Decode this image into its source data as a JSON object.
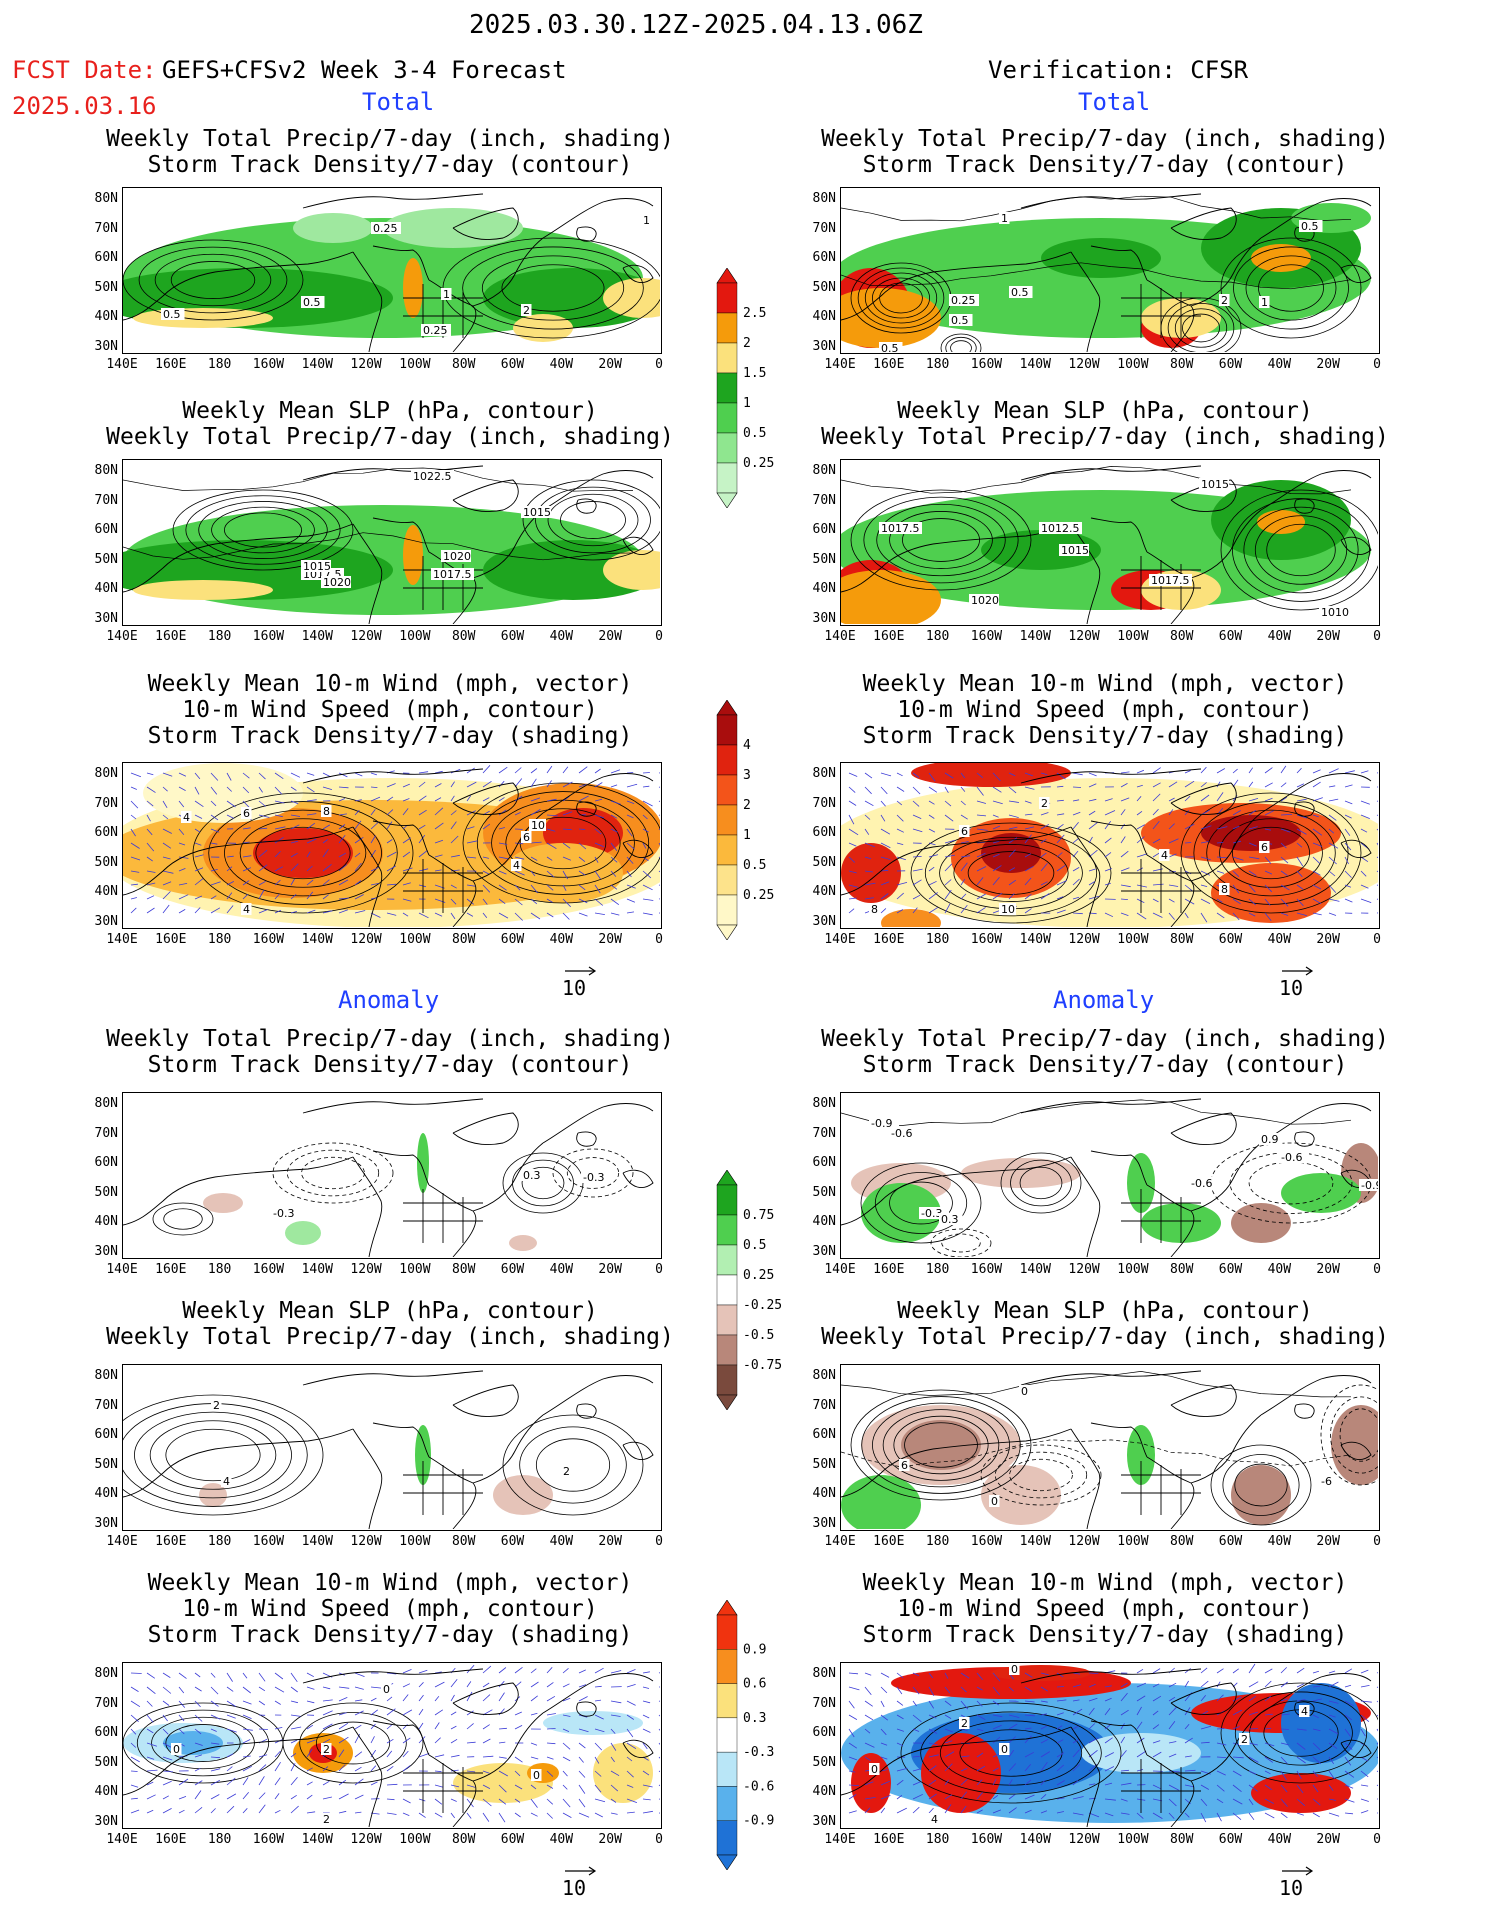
{
  "header": {
    "period": "2025.03.30.12Z-2025.04.13.06Z",
    "fcst_label": "FCST Date:",
    "model": "GEFS+CFSv2 Week 3-4 Forecast",
    "fcst_date": "2025.03.16",
    "verification": "Verification: CFSR",
    "left_total": "Total",
    "right_total": "Total",
    "left_anomaly": "Anomaly",
    "right_anomaly": "Anomaly"
  },
  "titles": {
    "precip_storm": [
      "Weekly Total Precip/7-day (inch, shading)",
      "Storm Track Density/7-day (contour)"
    ],
    "slp_precip": [
      "Weekly Mean SLP (hPa, contour)",
      "Weekly Total Precip/7-day (inch, shading)"
    ],
    "wind_storm": [
      "Weekly Mean 10-m Wind (mph, vector)",
      "10-m Wind Speed (mph, contour)",
      "Storm Track Density/7-day (shading)"
    ]
  },
  "axes": {
    "lat_labels": [
      "80N",
      "70N",
      "60N",
      "50N",
      "40N",
      "30N"
    ],
    "lon_labels": [
      "140E",
      "160E",
      "180",
      "160W",
      "140W",
      "120W",
      "100W",
      "80W",
      "60W",
      "40W",
      "20W",
      "0"
    ]
  },
  "vector_ref": "10",
  "colorbars": {
    "precip_total": {
      "labels": [
        "2.5",
        "2",
        "1.5",
        "1",
        "0.5",
        "0.25"
      ],
      "colors": [
        "#e3180f",
        "#f59b0b",
        "#fbe17c",
        "#1ea51f",
        "#4fcf4f",
        "#8fe68f",
        "#c6f3c6"
      ]
    },
    "storm_total": {
      "labels": [
        "4",
        "3",
        "2",
        "1",
        "0.5",
        "0.25"
      ],
      "colors": [
        "#a90d0d",
        "#e0230f",
        "#f3541a",
        "#f78e1e",
        "#fbb93c",
        "#fde38b",
        "#fff8c8"
      ]
    },
    "precip_anom": {
      "labels": [
        "0.75",
        "0.5",
        "0.25",
        "-0.25",
        "-0.5",
        "-0.75"
      ],
      "colors": [
        "#1ea51f",
        "#4fcf4f",
        "#b2efb2",
        "#ffffff",
        "#e5c3b8",
        "#b8877a",
        "#7a4a3d"
      ]
    },
    "storm_anom": {
      "labels": [
        "0.9",
        "0.6",
        "0.3",
        "-0.3",
        "-0.6",
        "-0.9"
      ],
      "colors": [
        "#f0330f",
        "#f78e1e",
        "#fbe17c",
        "#ffffff",
        "#b9e6f7",
        "#59b1ec",
        "#1f72d6"
      ]
    }
  },
  "contour_labels": {
    "l_precip_total": [
      "0.25",
      "0.5",
      "1",
      "0.25",
      "2",
      "1",
      "0.5"
    ],
    "r_precip_total": [
      "1",
      "0.5",
      "0.25",
      "0.5",
      "0.5",
      "2",
      "1",
      "0.5"
    ],
    "l_slp_total": [
      "1022.5",
      "1015",
      "1020",
      "1017.5",
      "1017.5",
      "1020",
      "1015"
    ],
    "r_slp_total": [
      "1015",
      "1017.5",
      "1012.5",
      "1015",
      "1017.5",
      "1020",
      "1010"
    ],
    "l_wind_total": [
      "4",
      "6",
      "8",
      "10",
      "4",
      "6",
      "4"
    ],
    "r_wind_total": [
      "2",
      "6",
      "10",
      "8",
      "6",
      "4",
      "8"
    ],
    "l_precip_anom": [
      "-0.3",
      "0.3",
      "-0.3"
    ],
    "r_precip_anom": [
      "-0.9",
      "-0.6",
      "0.9",
      "-0.6",
      "-0.6",
      "-0.9",
      "-0.3",
      "0.3"
    ],
    "l_slp_anom": [
      "2",
      "4",
      "2"
    ],
    "r_slp_anom": [
      "6",
      "0",
      "-6",
      "0"
    ],
    "l_wind_anom": [
      "0",
      "2",
      "0",
      "0",
      "2"
    ],
    "r_wind_anom": [
      "0",
      "2",
      "0",
      "4",
      "2",
      "0",
      "4"
    ]
  }
}
